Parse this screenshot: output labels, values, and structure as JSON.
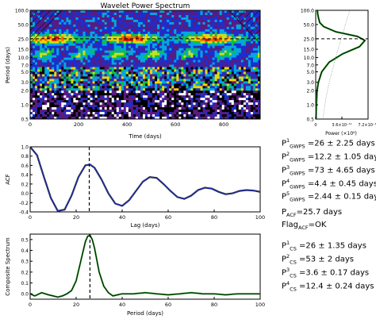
{
  "wavelet": {
    "title": "Wavelet Power Spectrum",
    "xlabel": "Time (days)",
    "ylabel": "Period (days)",
    "xticks": [
      "0",
      "200",
      "400",
      "600",
      "800"
    ],
    "yticks": [
      "0.5",
      "1.0",
      "2.0",
      "3.0",
      "5.0",
      "7.0",
      "10.0",
      "15.0",
      "25.0",
      "50.0",
      "100.0"
    ],
    "dominant_period": 25,
    "colors": [
      "#ffffff",
      "#000000",
      "#5a1b80",
      "#1a2fd0",
      "#00a8e0",
      "#10c040",
      "#c8e020",
      "#ffd000",
      "#ff6000",
      "#e00000"
    ]
  },
  "gwps": {
    "xlabel": "Power (×10⁶)",
    "xticks": [
      "0",
      "3.6×10⁻¹¹",
      "7.2×10⁻¹¹"
    ],
    "yticks": [
      "100.0",
      "50.0",
      "25.0",
      "15.0",
      "10.0",
      "7.0",
      "5.0",
      "3.0",
      "2.0",
      "1.0",
      "0.5"
    ]
  },
  "acf": {
    "xlabel": "Lag (days)",
    "ylabel": "ACF",
    "xticks": [
      "0",
      "20",
      "40",
      "60",
      "80",
      "100"
    ],
    "yticks": [
      "1.0",
      "0.8",
      "0.6",
      "0.4",
      "0.2",
      "0.0",
      "-0.2",
      "-0.4"
    ],
    "peak_lag": 25.7
  },
  "cs": {
    "xlabel": "Period (days)",
    "ylabel": "Composite Spectrum",
    "xticks": [
      "0",
      "20",
      "40",
      "60",
      "80",
      "100"
    ],
    "yticks": [
      "0.5",
      "0.4",
      "0.3",
      "0.2",
      "0.1",
      "0.0"
    ],
    "peak_period": 26
  },
  "results": {
    "gwps": [
      {
        "sup": "1",
        "sub": "GWPS",
        "text": " =26 ± 2.25 days"
      },
      {
        "sup": "2",
        "sub": "GWPS",
        "text": " =12.2 ± 1.05 days"
      },
      {
        "sup": "3",
        "sub": "GWPS",
        "text": " =73 ± 4.65 days"
      },
      {
        "sup": "4",
        "sub": "GWPS",
        "text": " =4.4 ± 0.45 days"
      },
      {
        "sup": "5",
        "sub": "GWPS",
        "text": " =2.44 ± 0.15 days"
      }
    ],
    "acf": {
      "sub": "ACF",
      "text": "=25.7 days"
    },
    "flag": {
      "sub": "ACF",
      "text": "=OK"
    },
    "cs": [
      {
        "sup": "1",
        "sub": "CS",
        "text": " =26 ± 1.35 days"
      },
      {
        "sup": "2",
        "sub": "CS",
        "text": " =53 ± 2 days"
      },
      {
        "sup": "3",
        "sub": "CS",
        "text": " =3.6 ± 0.17 days"
      },
      {
        "sup": "4",
        "sub": "CS",
        "text": " =12.4 ± 0.24 days"
      }
    ]
  },
  "chart_data": [
    {
      "type": "heatmap",
      "title": "Wavelet Power Spectrum",
      "xlabel": "Time (days)",
      "ylabel": "Period (days)",
      "xlim": [
        0,
        950
      ],
      "ylim": [
        0.5,
        100
      ],
      "yscale": "log",
      "dominant_band_period": 25
    },
    {
      "type": "line",
      "xlabel": "Power (×10⁶)",
      "yscale": "log",
      "ylim": [
        0.5,
        100
      ],
      "series": [
        {
          "name": "",
          "x": [
            0.05,
            0.1,
            0.2,
            0.4,
            0.9,
            2.0,
            4.0,
            6.5,
            7.3,
            6.2,
            3.0,
            1.2,
            0.6,
            0.4,
            0.3,
            0.25
          ],
          "y": [
            0.5,
            1.0,
            2.0,
            3.0,
            5.0,
            8.0,
            12.0,
            17.0,
            23.0,
            28.0,
            35.0,
            45.0,
            55.0,
            70.0,
            85.0,
            100.0
          ]
        }
      ],
      "peak_period": 25
    },
    {
      "type": "line",
      "xlabel": "Lag (days)",
      "ylabel": "ACF",
      "xlim": [
        0,
        100
      ],
      "ylim": [
        -0.4,
        1.0
      ],
      "series": [
        {
          "name": "",
          "x": [
            0,
            3,
            6,
            9,
            12,
            15,
            18,
            21,
            24,
            26,
            28,
            31,
            34,
            37,
            40,
            43,
            46,
            49,
            52,
            55,
            58,
            61,
            64,
            67,
            70,
            73,
            76,
            79,
            82,
            85,
            88,
            91,
            94,
            97,
            100
          ],
          "y": [
            1.0,
            0.82,
            0.35,
            -0.1,
            -0.38,
            -0.35,
            -0.05,
            0.35,
            0.6,
            0.62,
            0.55,
            0.3,
            0.0,
            -0.22,
            -0.27,
            -0.15,
            0.05,
            0.25,
            0.35,
            0.33,
            0.2,
            0.05,
            -0.08,
            -0.12,
            -0.05,
            0.07,
            0.12,
            0.1,
            0.03,
            -0.02,
            0.0,
            0.05,
            0.07,
            0.06,
            0.03
          ]
        }
      ],
      "vline_x": 25.7
    },
    {
      "type": "line",
      "xlabel": "Period (days)",
      "ylabel": "Composite Spectrum",
      "xlim": [
        0,
        100
      ],
      "ylim": [
        -0.05,
        0.55
      ],
      "series": [
        {
          "name": "",
          "x": [
            0,
            2,
            5,
            8,
            10,
            12,
            14,
            16,
            18,
            20,
            22,
            24,
            25,
            26,
            27,
            28,
            30,
            32,
            34,
            36,
            38,
            40,
            45,
            50,
            55,
            60,
            65,
            70,
            75,
            80,
            85,
            90,
            95,
            100
          ],
          "y": [
            0.0,
            -0.02,
            0.01,
            -0.01,
            -0.02,
            -0.03,
            -0.02,
            0.0,
            0.03,
            0.12,
            0.3,
            0.48,
            0.53,
            0.54,
            0.5,
            0.42,
            0.2,
            0.07,
            0.01,
            -0.02,
            -0.01,
            0.0,
            0.0,
            0.01,
            0.0,
            -0.01,
            0.0,
            0.01,
            0.0,
            0.0,
            -0.01,
            0.0,
            0.0,
            0.0
          ]
        }
      ],
      "vline_x": 26
    }
  ]
}
